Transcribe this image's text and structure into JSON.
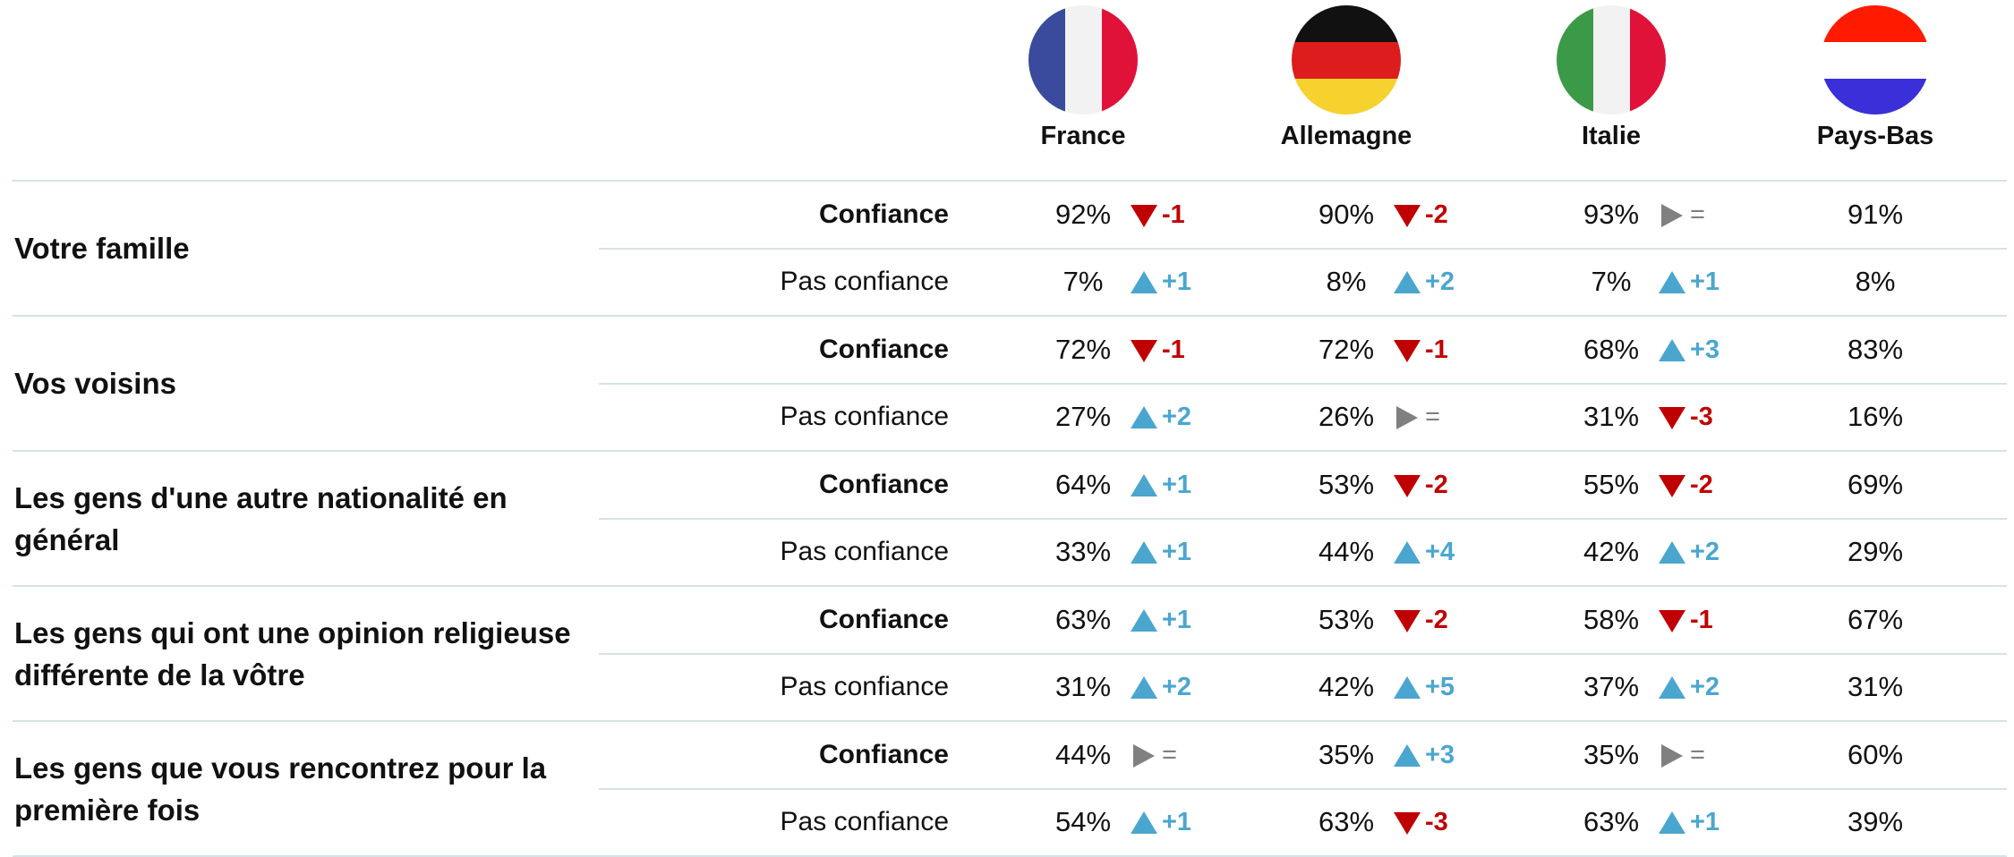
{
  "countries": [
    "France",
    "Allemagne",
    "Italie",
    "Pays-Bas"
  ],
  "groups": [
    {
      "label": "Votre famille",
      "rows": [
        {
          "label": "Confiance",
          "cells": [
            {
              "value": "92%",
              "change": "-1",
              "trend": "down"
            },
            {
              "value": "90%",
              "change": "-2",
              "trend": "down"
            },
            {
              "value": "93%",
              "change": "=",
              "trend": "flat"
            },
            {
              "value": "91%"
            }
          ]
        },
        {
          "label": "Pas confiance",
          "cells": [
            {
              "value": "7%",
              "change": "+1",
              "trend": "up"
            },
            {
              "value": "8%",
              "change": "+2",
              "trend": "up"
            },
            {
              "value": "7%",
              "change": "+1",
              "trend": "up"
            },
            {
              "value": "8%"
            }
          ]
        }
      ]
    },
    {
      "label": "Vos voisins",
      "rows": [
        {
          "label": "Confiance",
          "cells": [
            {
              "value": "72%",
              "change": "-1",
              "trend": "down"
            },
            {
              "value": "72%",
              "change": "-1",
              "trend": "down"
            },
            {
              "value": "68%",
              "change": "+3",
              "trend": "up"
            },
            {
              "value": "83%"
            }
          ]
        },
        {
          "label": "Pas confiance",
          "cells": [
            {
              "value": "27%",
              "change": "+2",
              "trend": "up"
            },
            {
              "value": "26%",
              "change": "=",
              "trend": "flat"
            },
            {
              "value": "31%",
              "change": "-3",
              "trend": "down"
            },
            {
              "value": "16%"
            }
          ]
        }
      ]
    },
    {
      "label": "Les gens d'une autre nationalité en général",
      "rows": [
        {
          "label": "Confiance",
          "cells": [
            {
              "value": "64%",
              "change": "+1",
              "trend": "up"
            },
            {
              "value": "53%",
              "change": "-2",
              "trend": "down"
            },
            {
              "value": "55%",
              "change": "-2",
              "trend": "down"
            },
            {
              "value": "69%"
            }
          ]
        },
        {
          "label": "Pas confiance",
          "cells": [
            {
              "value": "33%",
              "change": "+1",
              "trend": "up"
            },
            {
              "value": "44%",
              "change": "+4",
              "trend": "up"
            },
            {
              "value": "42%",
              "change": "+2",
              "trend": "up"
            },
            {
              "value": "29%"
            }
          ]
        }
      ]
    },
    {
      "label": "Les gens qui ont une opinion religieuse différente de la vôtre",
      "rows": [
        {
          "label": "Confiance",
          "cells": [
            {
              "value": "63%",
              "change": "+1",
              "trend": "up"
            },
            {
              "value": "53%",
              "change": "-2",
              "trend": "down"
            },
            {
              "value": "58%",
              "change": "-1",
              "trend": "down"
            },
            {
              "value": "67%"
            }
          ]
        },
        {
          "label": "Pas confiance",
          "cells": [
            {
              "value": "31%",
              "change": "+2",
              "trend": "up"
            },
            {
              "value": "42%",
              "change": "+5",
              "trend": "up"
            },
            {
              "value": "37%",
              "change": "+2",
              "trend": "up"
            },
            {
              "value": "31%"
            }
          ]
        }
      ]
    },
    {
      "label": "Les gens que vous rencontrez pour la première fois",
      "rows": [
        {
          "label": "Confiance",
          "cells": [
            {
              "value": "44%",
              "change": "=",
              "trend": "flat"
            },
            {
              "value": "35%",
              "change": "+3",
              "trend": "up"
            },
            {
              "value": "35%",
              "change": "=",
              "trend": "flat"
            },
            {
              "value": "60%"
            }
          ]
        },
        {
          "label": "Pas confiance",
          "cells": [
            {
              "value": "54%",
              "change": "+1",
              "trend": "up"
            },
            {
              "value": "63%",
              "change": "-3",
              "trend": "down"
            },
            {
              "value": "63%",
              "change": "+1",
              "trend": "up"
            },
            {
              "value": "39%"
            }
          ]
        }
      ]
    }
  ]
}
